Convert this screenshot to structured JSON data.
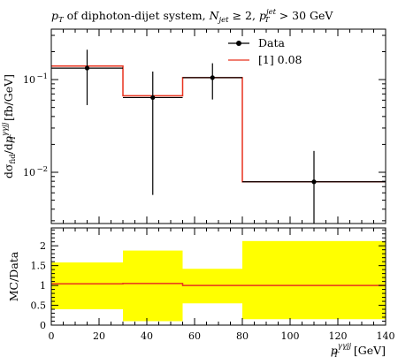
{
  "chart_data": {
    "type": "line",
    "title": "p_T of diphoton-dijet system, N_jet ≥ 2, p_T^jet > 30 GeV",
    "title_parts": {
      "p": "p",
      "T": "T",
      "mid": " of diphoton-dijet system, ",
      "N": "N",
      "jet": "jet",
      "ge2": " ≥ 2, ",
      "jetsup": "jet",
      "gt30": " > 30 GeV"
    },
    "xlabel": "p_T^γγjj [GeV]",
    "xlabel_parts": {
      "p": "p",
      "T": "T",
      "sup": "γγjj",
      "unit": " [GeV]"
    },
    "ylabel": "dσ_fid/dp_T^γγjj [fb/GeV]",
    "ylabel_parts": {
      "d1": "dσ",
      "fid": "fid",
      "slash": "/d",
      "p": "p",
      "T": "T",
      "sup": "γγjj",
      "unit": " [fb/GeV]"
    },
    "ratio_ylabel": "MC/Data",
    "xlim": [
      0,
      140
    ],
    "ylim": [
      0.0028,
      0.35
    ],
    "yscale": "log",
    "ratio_ylim": [
      0,
      2.45
    ],
    "x_ticks": [
      "0",
      "20",
      "40",
      "60",
      "80",
      "100",
      "120",
      "140"
    ],
    "y_ticks": [
      {
        "value": 0.1,
        "base": "10",
        "exp": "−1"
      },
      {
        "value": 0.01,
        "base": "10",
        "exp": "−2"
      }
    ],
    "ratio_ticks": [
      "0",
      "0.5",
      "1",
      "1.5",
      "2"
    ],
    "legend_position": "top-right",
    "series": [
      {
        "name": "Data",
        "style": "points",
        "color": "#000000",
        "points": [
          {
            "x": 15,
            "xlo": 0,
            "xhi": 30,
            "y": 0.133,
            "ylo": 0.053,
            "yhi": 0.21
          },
          {
            "x": 42.5,
            "xlo": 30,
            "xhi": 55,
            "y": 0.064,
            "ylo": 0.0057,
            "yhi": 0.122
          },
          {
            "x": 67.5,
            "xlo": 55,
            "xhi": 80,
            "y": 0.105,
            "ylo": 0.061,
            "yhi": 0.15
          },
          {
            "x": 110,
            "xlo": 80,
            "xhi": 140,
            "y": 0.0079,
            "ylo": 0.0027,
            "yhi": 0.017
          }
        ]
      },
      {
        "name": "[1] 0.08",
        "style": "step",
        "color": "#e8321e",
        "edges": [
          0,
          30,
          55,
          80,
          140
        ],
        "values": [
          0.14,
          0.067,
          0.105,
          0.0079
        ]
      }
    ],
    "ratio": {
      "band_color": "#ffff00",
      "band_edges": [
        0,
        30,
        55,
        80,
        140
      ],
      "band_lo": [
        0.4,
        0.1,
        0.55,
        0.15
      ],
      "band_hi": [
        1.58,
        1.88,
        1.42,
        2.12
      ],
      "line_values": [
        1.04,
        1.05,
        1.0,
        1.0
      ],
      "line_color": "#e8321e"
    }
  }
}
